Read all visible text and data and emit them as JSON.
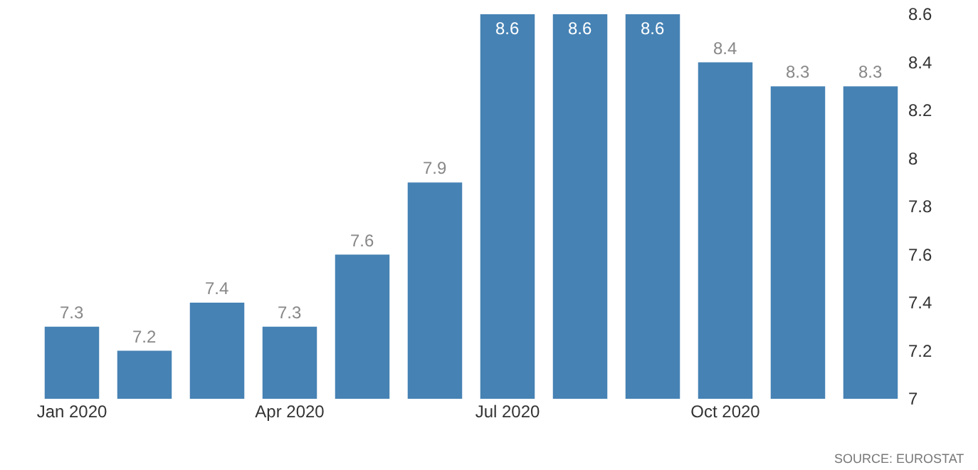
{
  "chart_data": {
    "type": "bar",
    "categories": [
      "Jan 2020",
      null,
      null,
      "Apr 2020",
      null,
      null,
      "Jul 2020",
      null,
      null,
      "Oct 2020",
      null,
      null
    ],
    "values": [
      7.3,
      7.2,
      7.4,
      7.3,
      7.6,
      7.9,
      8.6,
      8.6,
      8.6,
      8.4,
      8.3,
      8.3
    ],
    "color": "#4682b4",
    "ylim": [
      7,
      8.6
    ],
    "yticks": [
      7,
      7.2,
      7.4,
      7.6,
      7.8,
      8,
      8.2,
      8.4,
      8.6
    ],
    "data_labels": true,
    "grid": false,
    "annotations": [
      "SOURCE: EUROSTAT"
    ]
  }
}
